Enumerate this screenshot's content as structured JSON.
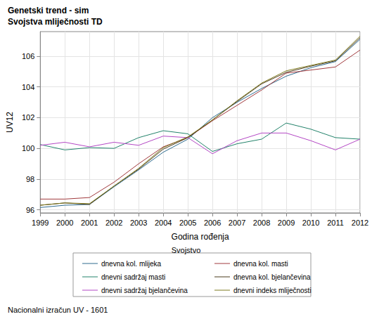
{
  "chart_data": {
    "type": "line",
    "title": "Genetski trend - sim",
    "subtitle": "Svojstva mliječnosti TD",
    "x_label": "Godina rođenja",
    "y_label": "UV12",
    "legend_title": "Svojstvo",
    "footnote": "Nacionalni izračun UV - 1601",
    "x": [
      1999,
      2000,
      2001,
      2002,
      2003,
      2004,
      2005,
      2006,
      2007,
      2008,
      2009,
      2010,
      2011,
      2012
    ],
    "xlim": [
      1999,
      2012
    ],
    "xticks": [
      1999,
      2000,
      2001,
      2002,
      2003,
      2004,
      2005,
      2006,
      2007,
      2008,
      2009,
      2010,
      2011,
      2012
    ],
    "ylim": [
      95.8,
      107.6
    ],
    "yticks": [
      96,
      98,
      100,
      102,
      104,
      106
    ],
    "grid": true,
    "legend": "bottom",
    "series": [
      {
        "name": "dnevna kol. mlijeka",
        "color": "#2e6b8e",
        "values": [
          96.15,
          96.3,
          96.35,
          97.5,
          98.6,
          99.75,
          100.6,
          102.0,
          103.0,
          103.9,
          104.7,
          105.25,
          105.65,
          107.1
        ]
      },
      {
        "name": "dnevna kol. masti",
        "color": "#a0393c",
        "values": [
          96.7,
          96.7,
          96.8,
          97.8,
          99.0,
          100.1,
          100.7,
          101.8,
          102.8,
          103.8,
          104.9,
          105.1,
          105.3,
          106.4
        ]
      },
      {
        "name": "dnevni sadržaj masti",
        "color": "#22826a",
        "values": [
          100.25,
          99.9,
          100.05,
          100.0,
          100.7,
          101.15,
          100.95,
          99.8,
          100.3,
          100.6,
          101.65,
          101.25,
          100.7,
          100.6
        ]
      },
      {
        "name": "dnevna kol. bjelančevina",
        "color": "#4b3a1c",
        "values": [
          96.3,
          96.45,
          96.35,
          97.55,
          98.65,
          99.95,
          100.7,
          101.85,
          103.05,
          104.2,
          104.95,
          105.35,
          105.7,
          107.2
        ]
      },
      {
        "name": "dnevni sadržaj bjelančevina",
        "color": "#b347c4",
        "values": [
          100.2,
          100.4,
          100.1,
          100.4,
          100.2,
          100.8,
          100.7,
          99.65,
          100.5,
          101.0,
          101.0,
          100.5,
          99.9,
          100.6
        ]
      },
      {
        "name": "dnevni indeks mliječnosti",
        "color": "#7d7a1e",
        "values": [
          96.3,
          96.45,
          96.4,
          97.55,
          98.7,
          100.05,
          100.75,
          101.85,
          103.1,
          104.25,
          105.05,
          105.4,
          105.75,
          107.3
        ]
      }
    ]
  }
}
